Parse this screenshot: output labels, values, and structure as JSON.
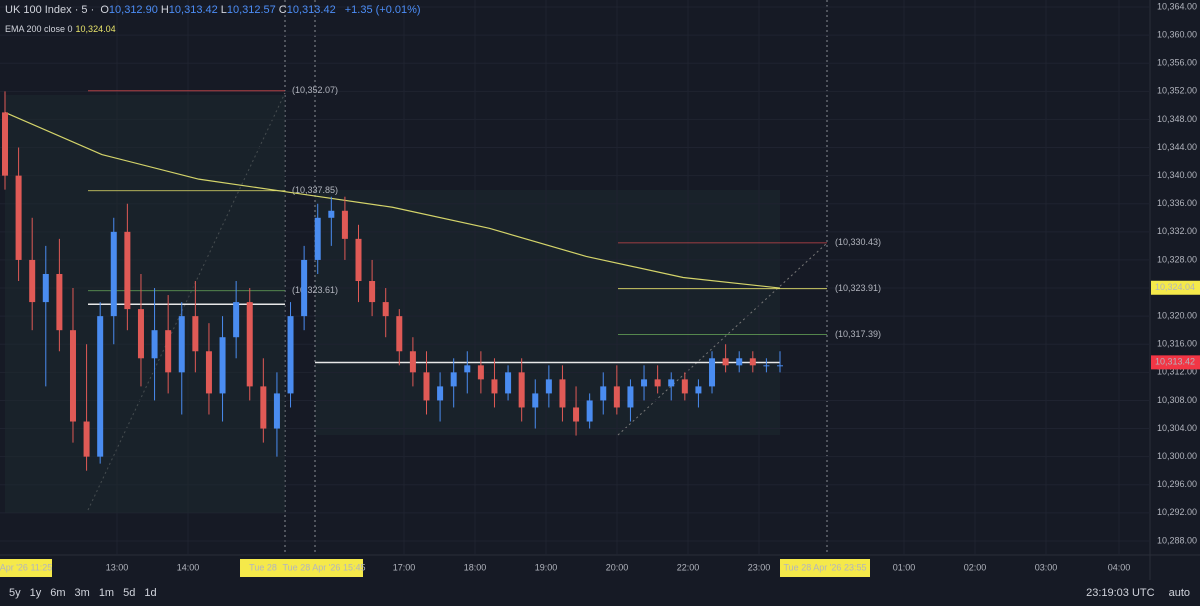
{
  "header": {
    "symbol": "UK 100 Index · 5 ·",
    "ohlc": [
      [
        "O",
        "10,312.90"
      ],
      [
        "H",
        "10,313.42"
      ],
      [
        "L",
        "10,312.57"
      ],
      [
        "C",
        "10,313.42"
      ]
    ],
    "change": "+1.35 (+0.01%)",
    "indicator": "EMA 200 close 0",
    "indicator_value": "10,324.04"
  },
  "chart_data": {
    "type": "candlestick",
    "up_color": "#4a8cf0",
    "down_color": "#e05a56",
    "open": [
      10349,
      10340,
      10328,
      10322,
      10326,
      10318,
      10305,
      10300,
      10320,
      10332,
      10321,
      10314,
      10318,
      10312,
      10320,
      10315,
      10309,
      10317,
      10322,
      10310,
      10304,
      10309,
      10320,
      10328,
      10334,
      10335,
      10331,
      10325,
      10322,
      10320,
      10315,
      10312,
      10308,
      10310,
      10312,
      10313,
      10311,
      10309,
      10312,
      10307,
      10309,
      10311,
      10307,
      10305,
      10308,
      10310,
      10307,
      10310,
      10311,
      10310,
      10311,
      10309,
      10310,
      10314,
      10313,
      10314,
      10313,
      10313
    ],
    "high": [
      10352,
      10344,
      10334,
      10330,
      10331,
      10324,
      10316,
      10322,
      10334,
      10336,
      10326,
      10324,
      10323,
      10322,
      10325,
      10319,
      10320,
      10325,
      10324,
      10314,
      10312,
      10322,
      10330,
      10336,
      10337,
      10337,
      10333,
      10328,
      10324,
      10321,
      10317,
      10315,
      10312,
      10314,
      10315,
      10315,
      10314,
      10313,
      10314,
      10311,
      10313,
      10313,
      10310,
      10309,
      10312,
      10313,
      10311,
      10313,
      10313,
      10312,
      10312,
      10311,
      10315,
      10316,
      10315,
      10315,
      10314,
      10315
    ],
    "low": [
      10338,
      10325,
      10318,
      10310,
      10315,
      10302,
      10298,
      10299,
      10316,
      10318,
      10310,
      10308,
      10309,
      10306,
      10312,
      10306,
      10305,
      10314,
      10308,
      10302,
      10300,
      10307,
      10318,
      10326,
      10330,
      10328,
      10322,
      10320,
      10317,
      10313,
      10310,
      10306,
      10305,
      10307,
      10309,
      10309,
      10307,
      10308,
      10305,
      10304,
      10307,
      10305,
      10303,
      10304,
      10306,
      10306,
      10305,
      10308,
      10309,
      10308,
      10308,
      10307,
      10309,
      10312,
      10312,
      10312,
      10312,
      10312
    ],
    "close": [
      10340,
      10328,
      10322,
      10326,
      10318,
      10305,
      10300,
      10320,
      10332,
      10321,
      10314,
      10318,
      10312,
      10320,
      10315,
      10309,
      10317,
      10322,
      10310,
      10304,
      10309,
      10320,
      10328,
      10334,
      10335,
      10331,
      10325,
      10322,
      10320,
      10315,
      10312,
      10308,
      10310,
      10312,
      10313,
      10311,
      10309,
      10312,
      10307,
      10309,
      10311,
      10307,
      10305,
      10308,
      10310,
      10307,
      10310,
      10311,
      10310,
      10311,
      10309,
      10310,
      10314,
      10313,
      10314,
      10313,
      10313,
      10313
    ],
    "ema": {
      "color": "#d4d46a",
      "values": [
        10349,
        10343,
        10339.5,
        10337.5,
        10335.5,
        10332.5,
        10328.5,
        10325.5,
        10324
      ]
    },
    "poc": [
      10321.7,
      10313.4
    ],
    "ylim": [
      10286,
      10365
    ],
    "yticks": [
      {
        "value": 10288,
        "label": "10,288.00"
      },
      {
        "value": 10292,
        "label": "10,292.00"
      },
      {
        "value": 10296,
        "label": "10,296.00"
      },
      {
        "value": 10300,
        "label": "10,300.00"
      },
      {
        "value": 10304,
        "label": "10,304.00"
      },
      {
        "value": 10308,
        "label": "10,308.00"
      },
      {
        "value": 10312,
        "label": "10,312.00"
      },
      {
        "value": 10316,
        "label": "10,316.00"
      },
      {
        "value": 10320,
        "label": "10,320.00"
      },
      {
        "value": 10324,
        "label": "10,324.00"
      },
      {
        "value": 10328,
        "label": "10,328.00"
      },
      {
        "value": 10332,
        "label": "10,332.00"
      },
      {
        "value": 10336,
        "label": "10,336.00"
      },
      {
        "value": 10340,
        "label": "10,340.00"
      },
      {
        "value": 10344,
        "label": "10,344.00"
      },
      {
        "value": 10348,
        "label": "10,348.00"
      },
      {
        "value": 10352,
        "label": "10,352.00"
      },
      {
        "value": 10356,
        "label": "10,356.00"
      },
      {
        "value": 10360,
        "label": "10,360.00"
      },
      {
        "value": 10364,
        "label": "10,364.00"
      }
    ],
    "levels": [
      [
        {
          "value": 10352.07,
          "label": "(10,352.07)",
          "color": "#c9474a"
        },
        {
          "value": 10337.85,
          "label": "(10,337.85)",
          "color": "#e7e36a"
        },
        {
          "value": 10323.61,
          "label": "(10,323.61)",
          "color": "#6aaa5a"
        }
      ],
      [
        {
          "value": 10330.43,
          "label": "(10,330.43)",
          "color": "#c9474a"
        },
        {
          "value": 10323.91,
          "label": "(10,323.91)",
          "color": "#e7e36a"
        },
        {
          "value": 10317.39,
          "label": "(10,317.39)",
          "color": "#6aaa5a"
        }
      ]
    ],
    "badges": [
      {
        "value": 10324.04,
        "label": "10,324.04",
        "color": "#f5e94a",
        "text_color": "#131722"
      },
      {
        "value": 10313.42,
        "label": "10,313.42",
        "color": "#f23645",
        "text_color": "#ffffff"
      }
    ],
    "time_labels": [
      "13:00",
      "14:00",
      "17:00",
      "18:00",
      "19:00",
      "20:00",
      "22:00",
      "23:00",
      "01:00",
      "02:00",
      "03:00",
      "04:00"
    ],
    "date_badges": [
      "Apr '26  11:25",
      "Tue 28",
      "Tue 28 Apr '26  15:45",
      "Tue 28 Apr '26  23:55"
    ]
  },
  "toolbar": {
    "ranges": [
      "5y",
      "1y",
      "6m",
      "3m",
      "1m",
      "5d",
      "1d"
    ],
    "clock": "23:19:03 UTC",
    "scale": "auto"
  }
}
